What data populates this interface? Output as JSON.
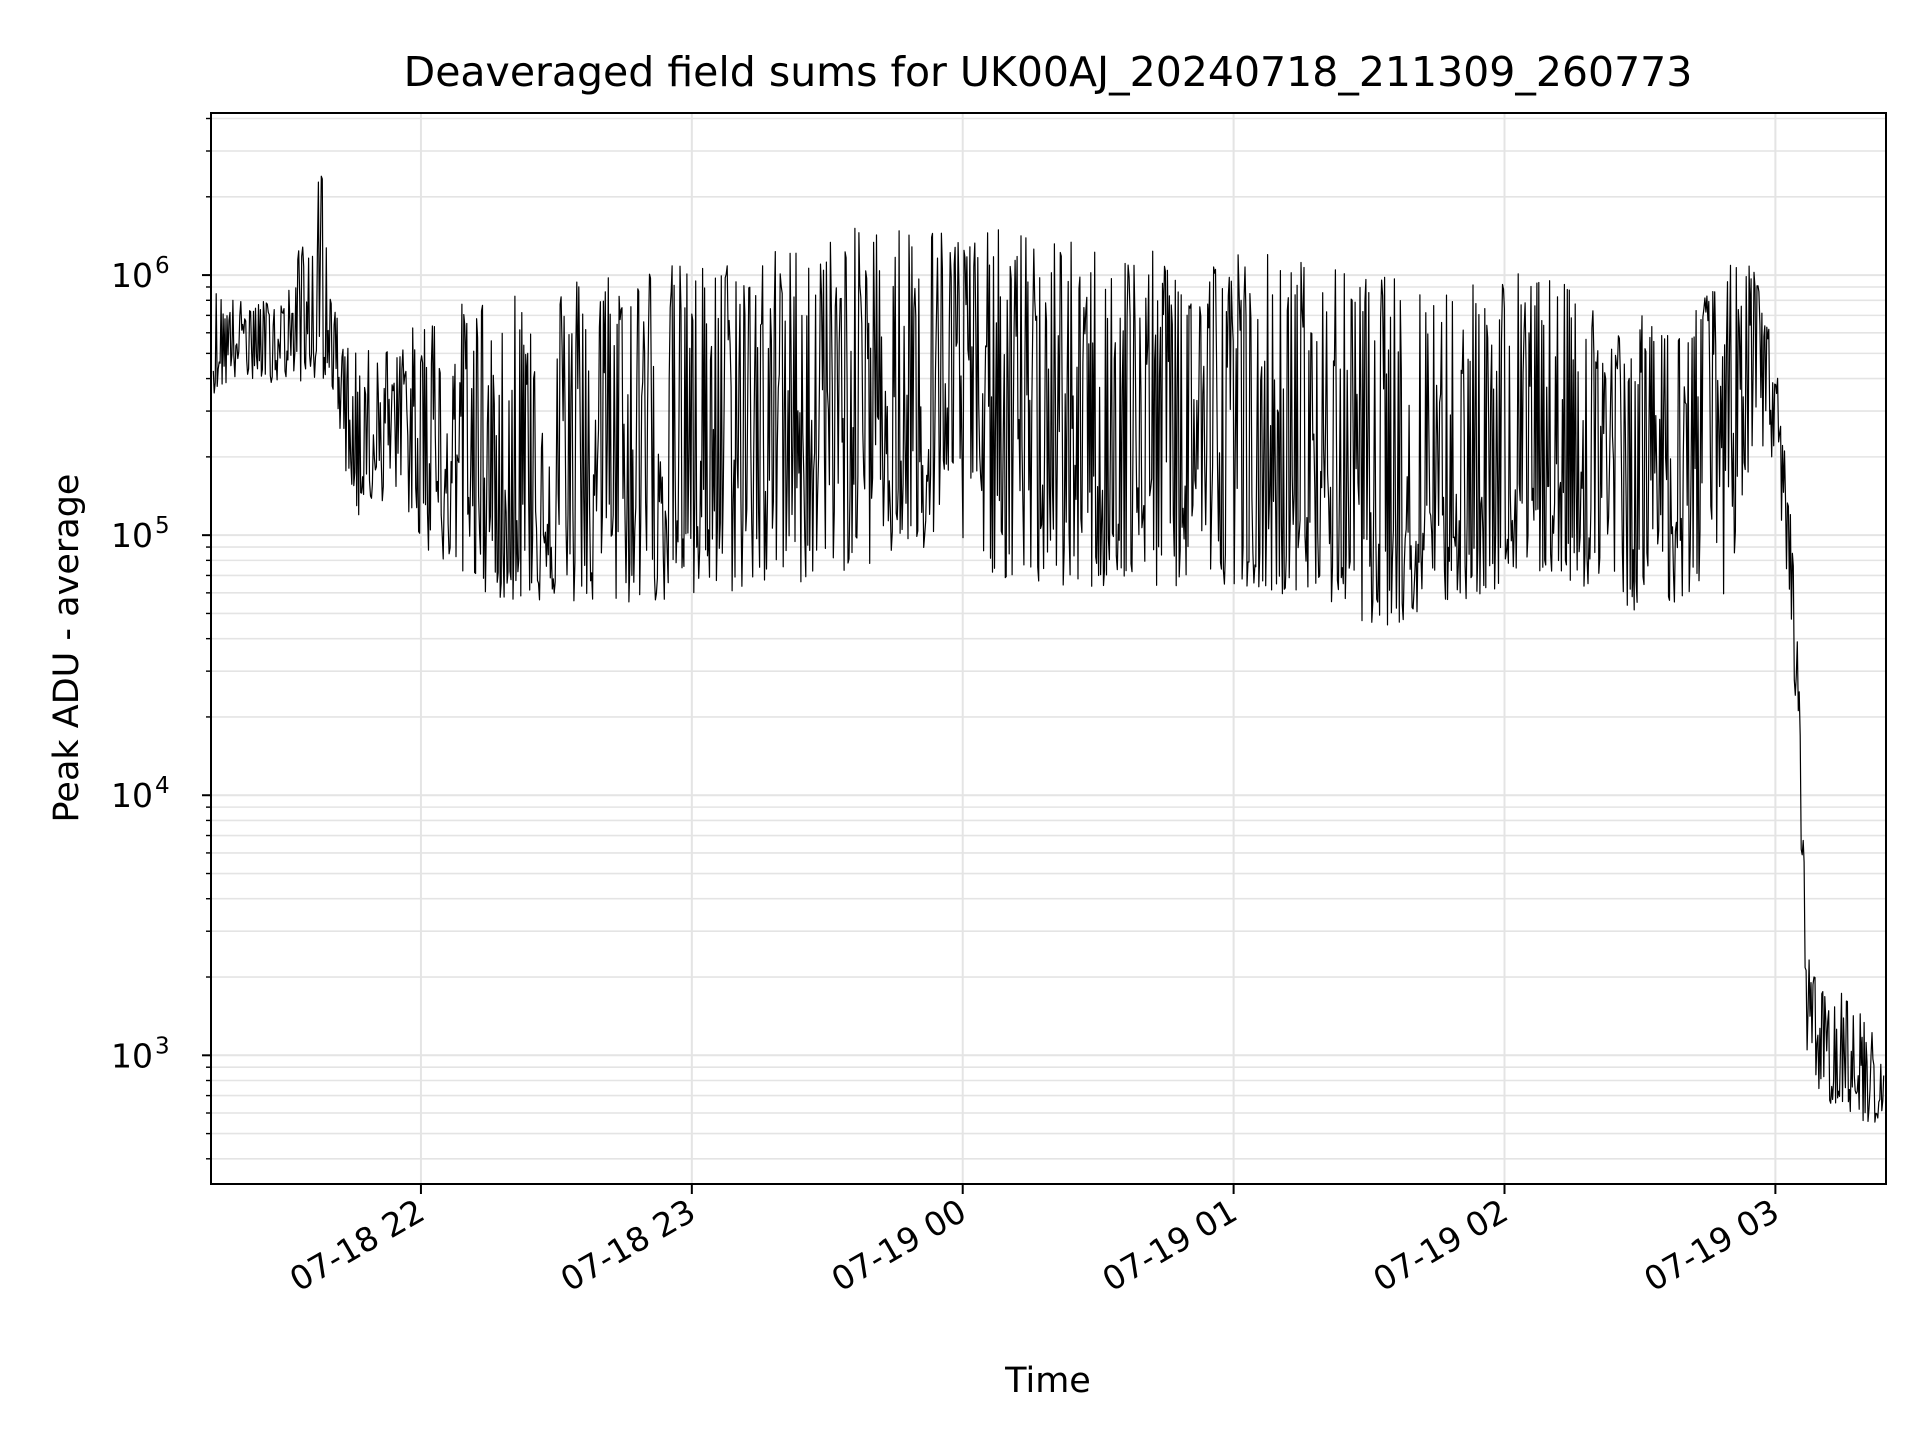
{
  "chart_data": {
    "type": "line",
    "title": "Deaveraged field sums for UK00AJ_20240718_211309_260773",
    "xlabel": "Time",
    "ylabel": "Peak ADU - average",
    "yscale": "log",
    "ylim": [
      320,
      4200000
    ],
    "xlim": [
      "2024-07-18 21:13:30",
      "2024-07-19 03:24:30"
    ],
    "grid": "major and minor, light gray",
    "line_color": "#000000",
    "x_ticks": [
      "07-18 22",
      "07-18 23",
      "07-19 00",
      "07-19 01",
      "07-19 02",
      "07-19 03"
    ],
    "y_ticks": [
      {
        "base": "10",
        "exp": "3",
        "value": 1000
      },
      {
        "base": "10",
        "exp": "4",
        "value": 10000
      },
      {
        "base": "10",
        "exp": "5",
        "value": 100000
      },
      {
        "base": "10",
        "exp": "6",
        "value": 1000000
      }
    ],
    "x": [
      "2024-07-18 21:14",
      "2024-07-18 21:20",
      "2024-07-18 21:30",
      "2024-07-18 21:38",
      "2024-07-18 21:40",
      "2024-07-18 21:45",
      "2024-07-18 21:55",
      "2024-07-18 22:00",
      "2024-07-18 22:10",
      "2024-07-18 22:20",
      "2024-07-18 22:30",
      "2024-07-18 22:40",
      "2024-07-18 22:50",
      "2024-07-18 23:00",
      "2024-07-18 23:10",
      "2024-07-18 23:20",
      "2024-07-18 23:30",
      "2024-07-18 23:40",
      "2024-07-18 23:50",
      "2024-07-19 00:00",
      "2024-07-19 00:10",
      "2024-07-19 00:20",
      "2024-07-19 00:30",
      "2024-07-19 00:40",
      "2024-07-19 00:50",
      "2024-07-19 01:00",
      "2024-07-19 01:10",
      "2024-07-19 01:20",
      "2024-07-19 01:30",
      "2024-07-19 01:40",
      "2024-07-19 01:50",
      "2024-07-19 02:00",
      "2024-07-19 02:10",
      "2024-07-19 02:20",
      "2024-07-19 02:30",
      "2024-07-19 02:40",
      "2024-07-19 02:50",
      "2024-07-19 02:55",
      "2024-07-19 03:00",
      "2024-07-19 03:03",
      "2024-07-19 03:05",
      "2024-07-19 03:07",
      "2024-07-19 03:10",
      "2024-07-19 03:15",
      "2024-07-19 03:20",
      "2024-07-19 03:24"
    ],
    "series": [
      {
        "values": [
          500000,
          600000,
          650000,
          600000,
          700000,
          300000,
          300000,
          250000,
          200000,
          150000,
          160000,
          200000,
          250000,
          250000,
          250000,
          300000,
          330000,
          350000,
          400000,
          400000,
          350000,
          300000,
          280000,
          250000,
          250000,
          220000,
          200000,
          200000,
          180000,
          170000,
          180000,
          170000,
          200000,
          200000,
          200000,
          220000,
          400000,
          800000,
          300000,
          100000,
          30000,
          2000,
          1000,
          900,
          850,
          700
        ],
        "envelope_high": [
          900000,
          800000,
          800000,
          2700000,
          800000,
          500000,
          550000,
          700000,
          800000,
          950000,
          1000000,
          1100000,
          1150000,
          1100000,
          1200000,
          1300000,
          1400000,
          1600000,
          1650000,
          1500000,
          1500000,
          1400000,
          1300000,
          1250000,
          1200000,
          1300000,
          1250000,
          1100000,
          1000000,
          1000000,
          1000000,
          1100000,
          1000000,
          800000,
          700000,
          700000,
          1100000,
          1100000,
          500000,
          150000,
          40000,
          2500,
          1800,
          1800,
          1400,
          1200
        ],
        "envelope_low": [
          350000,
          400000,
          380000,
          400000,
          400000,
          110000,
          150000,
          90000,
          65000,
          55000,
          55000,
          50000,
          55000,
          50000,
          60000,
          60000,
          70000,
          75000,
          80000,
          85000,
          65000,
          60000,
          60000,
          60000,
          62000,
          65000,
          60000,
          55000,
          45000,
          45000,
          55000,
          62000,
          70000,
          60000,
          50000,
          55000,
          60000,
          200000,
          180000,
          60000,
          15000,
          1000,
          700,
          600,
          550,
          550
        ]
      }
    ]
  }
}
